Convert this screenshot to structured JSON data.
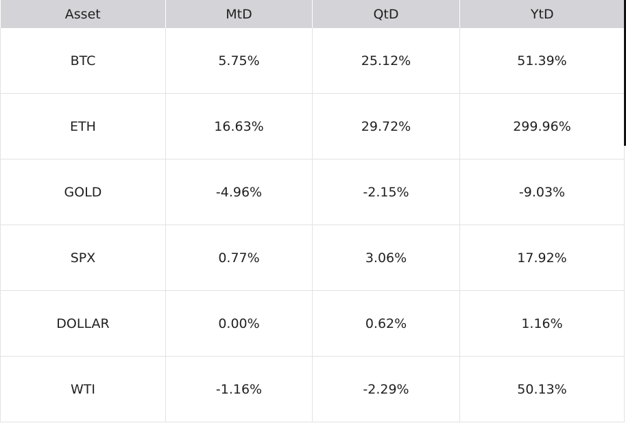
{
  "table": {
    "columns": [
      "Asset",
      "MtD",
      "QtD",
      "YtD"
    ],
    "rows": [
      [
        "BTC",
        "5.75%",
        "25.12%",
        "51.39%"
      ],
      [
        "ETH",
        "16.63%",
        "29.72%",
        "299.96%"
      ],
      [
        "GOLD",
        "-4.96%",
        "-2.15%",
        "-9.03%"
      ],
      [
        "SPX",
        "0.77%",
        "3.06%",
        "17.92%"
      ],
      [
        "DOLLAR",
        "0.00%",
        "0.62%",
        "1.16%"
      ],
      [
        "WTI",
        "-1.16%",
        "-2.29%",
        "50.13%"
      ]
    ]
  },
  "colors": {
    "header_bg": "#d4d4d8",
    "grid_line": "#e2e2e2",
    "text": "#1f1f1f",
    "edge_bar": "#111111"
  }
}
